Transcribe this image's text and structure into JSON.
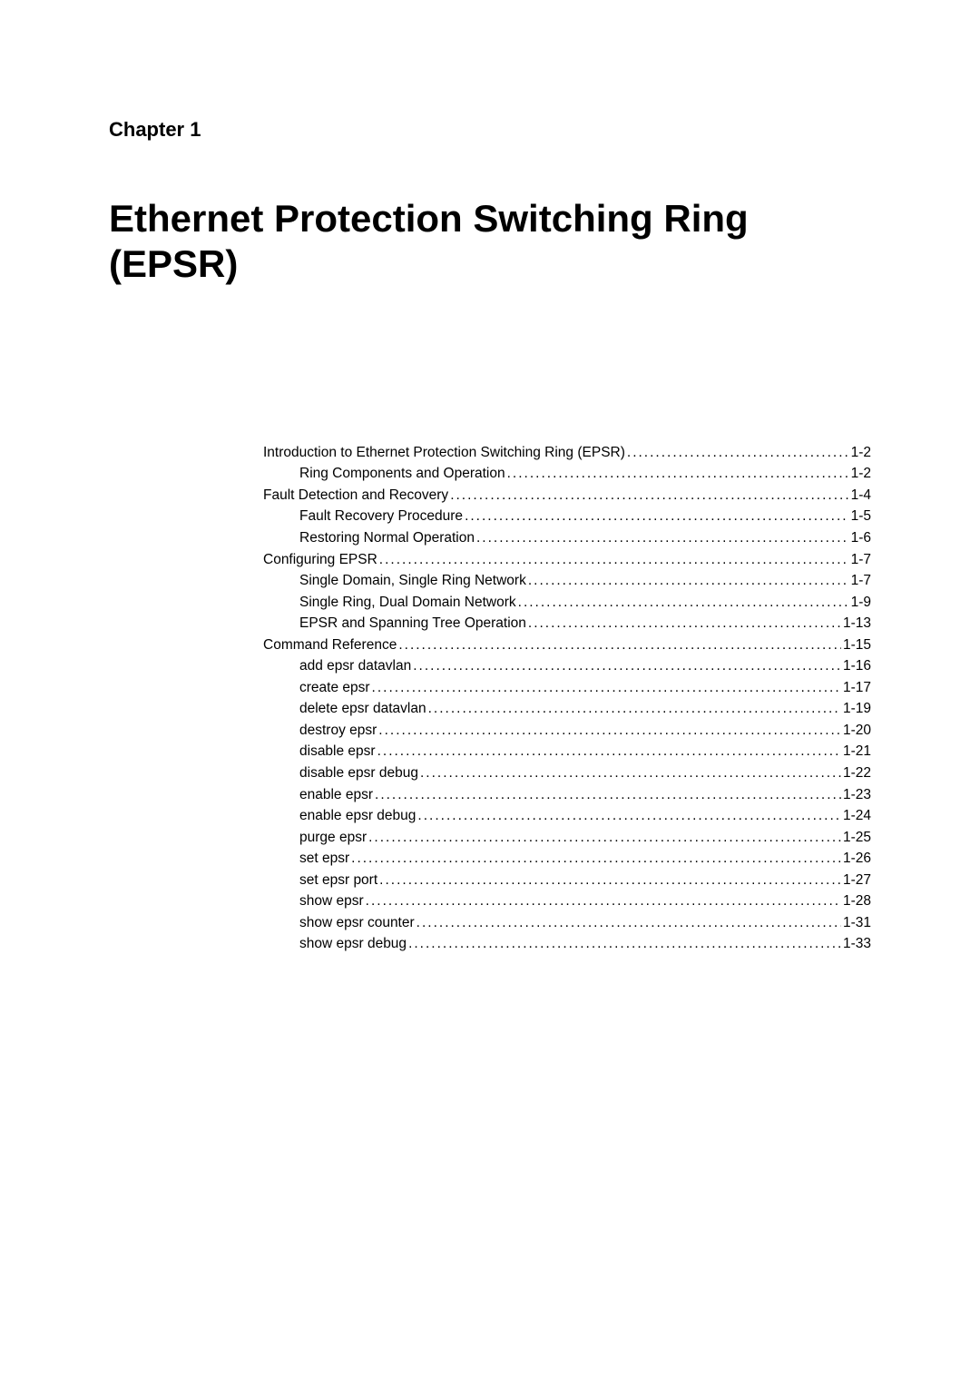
{
  "chapter_label": "Chapter 1",
  "chapter_title_line1": "Ethernet Protection Switching Ring",
  "chapter_title_line2": "(EPSR)",
  "toc": [
    {
      "label": "Introduction to Ethernet Protection Switching Ring (EPSR)",
      "page": "1-2",
      "indent": 0
    },
    {
      "label": "Ring Components and Operation",
      "page": "1-2",
      "indent": 1
    },
    {
      "label": "Fault Detection and Recovery",
      "page": "1-4",
      "indent": 0
    },
    {
      "label": "Fault Recovery Procedure",
      "page": "1-5",
      "indent": 1
    },
    {
      "label": "Restoring Normal Operation",
      "page": "1-6",
      "indent": 1
    },
    {
      "label": "Configuring EPSR",
      "page": "1-7",
      "indent": 0
    },
    {
      "label": "Single Domain, Single Ring Network",
      "page": "1-7",
      "indent": 1
    },
    {
      "label": "Single Ring, Dual Domain Network",
      "page": "1-9",
      "indent": 1
    },
    {
      "label": "EPSR and Spanning Tree Operation",
      "page": "1-13",
      "indent": 1
    },
    {
      "label": "Command Reference",
      "page": "1-15",
      "indent": 0
    },
    {
      "label": "add epsr datavlan",
      "page": "1-16",
      "indent": 1
    },
    {
      "label": "create epsr",
      "page": "1-17",
      "indent": 1
    },
    {
      "label": "delete epsr datavlan",
      "page": "1-19",
      "indent": 1
    },
    {
      "label": "destroy epsr",
      "page": "1-20",
      "indent": 1
    },
    {
      "label": "disable epsr",
      "page": "1-21",
      "indent": 1
    },
    {
      "label": "disable epsr debug",
      "page": "1-22",
      "indent": 1
    },
    {
      "label": "enable epsr",
      "page": "1-23",
      "indent": 1
    },
    {
      "label": "enable epsr debug",
      "page": "1-24",
      "indent": 1
    },
    {
      "label": "purge epsr",
      "page": "1-25",
      "indent": 1
    },
    {
      "label": "set epsr",
      "page": "1-26",
      "indent": 1
    },
    {
      "label": "set epsr port",
      "page": "1-27",
      "indent": 1
    },
    {
      "label": "show epsr",
      "page": "1-28",
      "indent": 1
    },
    {
      "label": "show epsr counter",
      "page": "1-31",
      "indent": 1
    },
    {
      "label": "show epsr debug",
      "page": "1-33",
      "indent": 1
    }
  ]
}
